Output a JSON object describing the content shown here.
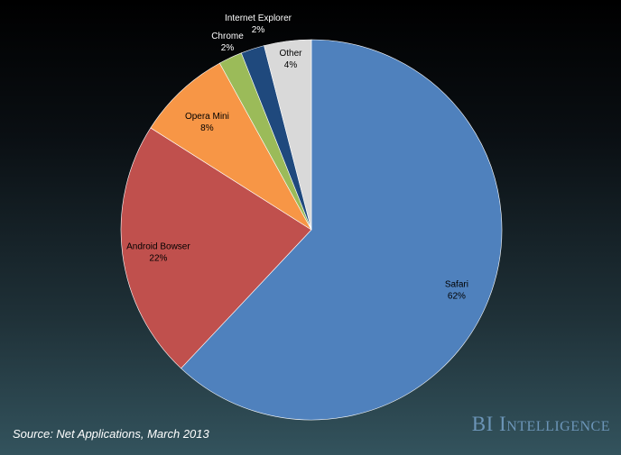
{
  "chart_data": {
    "type": "pie",
    "title": "",
    "slices": [
      {
        "label": "Safari",
        "value": 62,
        "value_label": "62%",
        "color": "#4f81bd",
        "text_color": "#000000"
      },
      {
        "label": "Android Bowser",
        "value": 22,
        "value_label": "22%",
        "color": "#c0504d",
        "text_color": "#000000"
      },
      {
        "label": "Opera Mini",
        "value": 8,
        "value_label": "8%",
        "color": "#f79646",
        "text_color": "#000000"
      },
      {
        "label": "Chrome",
        "value": 2,
        "value_label": "2%",
        "color": "#9bbb59",
        "text_color": "#ffffff"
      },
      {
        "label": "Internet Explorer",
        "value": 2,
        "value_label": "2%",
        "color": "#1f497d",
        "text_color": "#ffffff"
      },
      {
        "label": "Other",
        "value": 4,
        "value_label": "4%",
        "color": "#d9d9d9",
        "text_color": "#000000"
      }
    ]
  },
  "footer": {
    "source": "Source: Net Applications, March 2013",
    "brand": "BI Intelligence"
  }
}
